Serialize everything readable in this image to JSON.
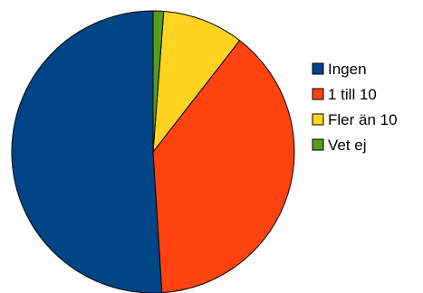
{
  "chart_data": {
    "type": "pie",
    "categories": [
      "Ingen",
      "1 till 10",
      "Fler än 10",
      "Vet ej"
    ],
    "values": [
      51.0,
      38.5,
      9.3,
      1.2
    ],
    "colors": [
      "#004586",
      "#ff420e",
      "#ffd320",
      "#579d1c"
    ],
    "start_angle_deg": 0,
    "direction": "counter-clockwise",
    "legend": "right",
    "legend_entries": [
      {
        "label": "Ingen"
      },
      {
        "label": "1 till 10"
      },
      {
        "label": "Fler än 10"
      },
      {
        "label": "Vet ej"
      }
    ]
  }
}
